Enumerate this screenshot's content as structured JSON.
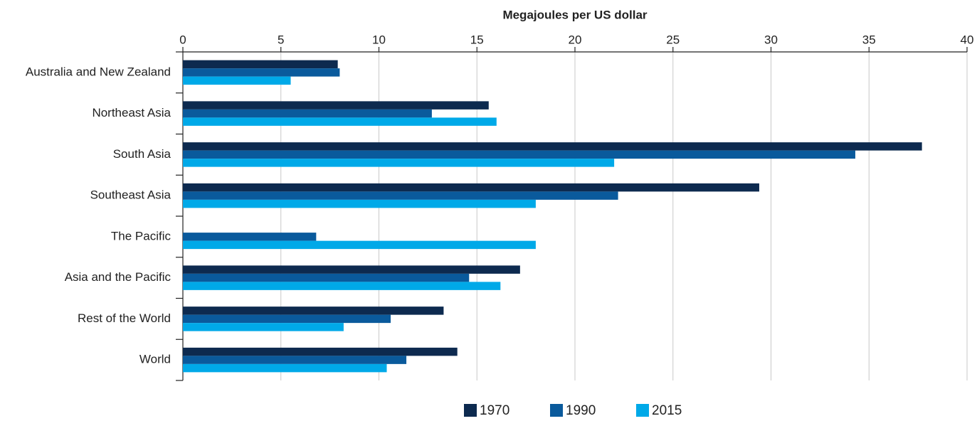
{
  "chart_data": {
    "type": "bar",
    "orientation": "horizontal",
    "x_label": "Megajoules per US dollar",
    "categories": [
      "Australia and New Zealand",
      "Northeast Asia",
      "South Asia",
      "Southeast Asia",
      "The Pacific",
      "Asia and the Pacific",
      "Rest of the World",
      "World"
    ],
    "series": [
      {
        "name": "1970",
        "color": "#0d2a4f",
        "values": [
          7.9,
          15.6,
          37.7,
          29.4,
          null,
          17.2,
          13.3,
          14.0
        ]
      },
      {
        "name": "1990",
        "color": "#0a5a9c",
        "values": [
          8.0,
          12.7,
          34.3,
          22.2,
          6.8,
          14.6,
          10.6,
          11.4
        ]
      },
      {
        "name": "2015",
        "color": "#00a9e8",
        "values": [
          5.5,
          16.0,
          22.0,
          18.0,
          18.0,
          16.2,
          8.2,
          10.4
        ]
      }
    ],
    "xlim": [
      0,
      40
    ],
    "xticks": [
      0,
      5,
      10,
      15,
      20,
      25,
      30,
      35,
      40
    ],
    "grid": true,
    "legend": "bottom"
  }
}
